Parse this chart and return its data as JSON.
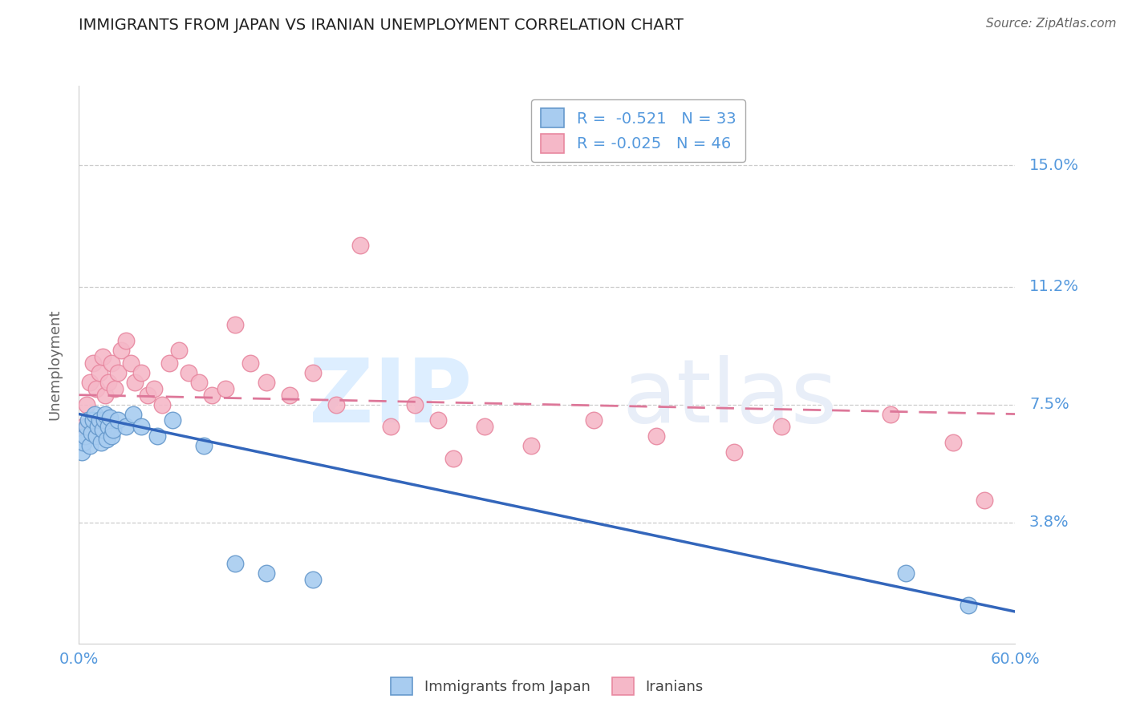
{
  "title": "IMMIGRANTS FROM JAPAN VS IRANIAN UNEMPLOYMENT CORRELATION CHART",
  "source": "Source: ZipAtlas.com",
  "xlabel": "",
  "ylabel": "Unemployment",
  "xlim": [
    0.0,
    0.6
  ],
  "ylim": [
    0.0,
    0.175
  ],
  "yticks": [
    0.038,
    0.075,
    0.112,
    0.15
  ],
  "ytick_labels": [
    "3.8%",
    "7.5%",
    "11.2%",
    "15.0%"
  ],
  "xticks": [
    0.0,
    0.6
  ],
  "xtick_labels": [
    "0.0%",
    "60.0%"
  ],
  "blue_R": "-0.521",
  "blue_N": "33",
  "pink_R": "-0.025",
  "pink_N": "46",
  "blue_color": "#A8CCF0",
  "pink_color": "#F5B8C8",
  "blue_edge_color": "#6699CC",
  "pink_edge_color": "#E888A0",
  "blue_line_color": "#3366BB",
  "pink_line_color": "#DD7799",
  "legend_blue_label": "Immigrants from Japan",
  "legend_pink_label": "Iranians",
  "watermark_zip": "ZIP",
  "watermark_atlas": "atlas",
  "background_color": "#ffffff",
  "grid_color": "#cccccc",
  "axis_label_color": "#5599DD",
  "title_color": "#222222",
  "blue_scatter_x": [
    0.002,
    0.003,
    0.004,
    0.005,
    0.006,
    0.007,
    0.008,
    0.009,
    0.01,
    0.011,
    0.012,
    0.013,
    0.014,
    0.015,
    0.016,
    0.017,
    0.018,
    0.019,
    0.02,
    0.021,
    0.022,
    0.025,
    0.03,
    0.035,
    0.04,
    0.05,
    0.06,
    0.08,
    0.1,
    0.12,
    0.15,
    0.53,
    0.57
  ],
  "blue_scatter_y": [
    0.06,
    0.063,
    0.065,
    0.068,
    0.07,
    0.062,
    0.066,
    0.07,
    0.072,
    0.065,
    0.068,
    0.07,
    0.063,
    0.067,
    0.07,
    0.072,
    0.064,
    0.068,
    0.071,
    0.065,
    0.067,
    0.07,
    0.068,
    0.072,
    0.068,
    0.065,
    0.07,
    0.062,
    0.025,
    0.022,
    0.02,
    0.022,
    0.012
  ],
  "pink_scatter_x": [
    0.003,
    0.005,
    0.007,
    0.009,
    0.011,
    0.013,
    0.015,
    0.017,
    0.019,
    0.021,
    0.023,
    0.025,
    0.027,
    0.03,
    0.033,
    0.036,
    0.04,
    0.044,
    0.048,
    0.053,
    0.058,
    0.064,
    0.07,
    0.077,
    0.085,
    0.094,
    0.1,
    0.11,
    0.12,
    0.135,
    0.15,
    0.165,
    0.18,
    0.2,
    0.215,
    0.23,
    0.26,
    0.29,
    0.33,
    0.37,
    0.42,
    0.45,
    0.52,
    0.56,
    0.58,
    0.24
  ],
  "pink_scatter_y": [
    0.068,
    0.075,
    0.082,
    0.088,
    0.08,
    0.085,
    0.09,
    0.078,
    0.082,
    0.088,
    0.08,
    0.085,
    0.092,
    0.095,
    0.088,
    0.082,
    0.085,
    0.078,
    0.08,
    0.075,
    0.088,
    0.092,
    0.085,
    0.082,
    0.078,
    0.08,
    0.1,
    0.088,
    0.082,
    0.078,
    0.085,
    0.075,
    0.125,
    0.068,
    0.075,
    0.07,
    0.068,
    0.062,
    0.07,
    0.065,
    0.06,
    0.068,
    0.072,
    0.063,
    0.045,
    0.058
  ],
  "blue_trend_x0": 0.0,
  "blue_trend_y0": 0.072,
  "blue_trend_x1": 0.6,
  "blue_trend_y1": 0.01,
  "pink_trend_x0": 0.0,
  "pink_trend_y0": 0.078,
  "pink_trend_x1": 0.6,
  "pink_trend_y1": 0.072
}
